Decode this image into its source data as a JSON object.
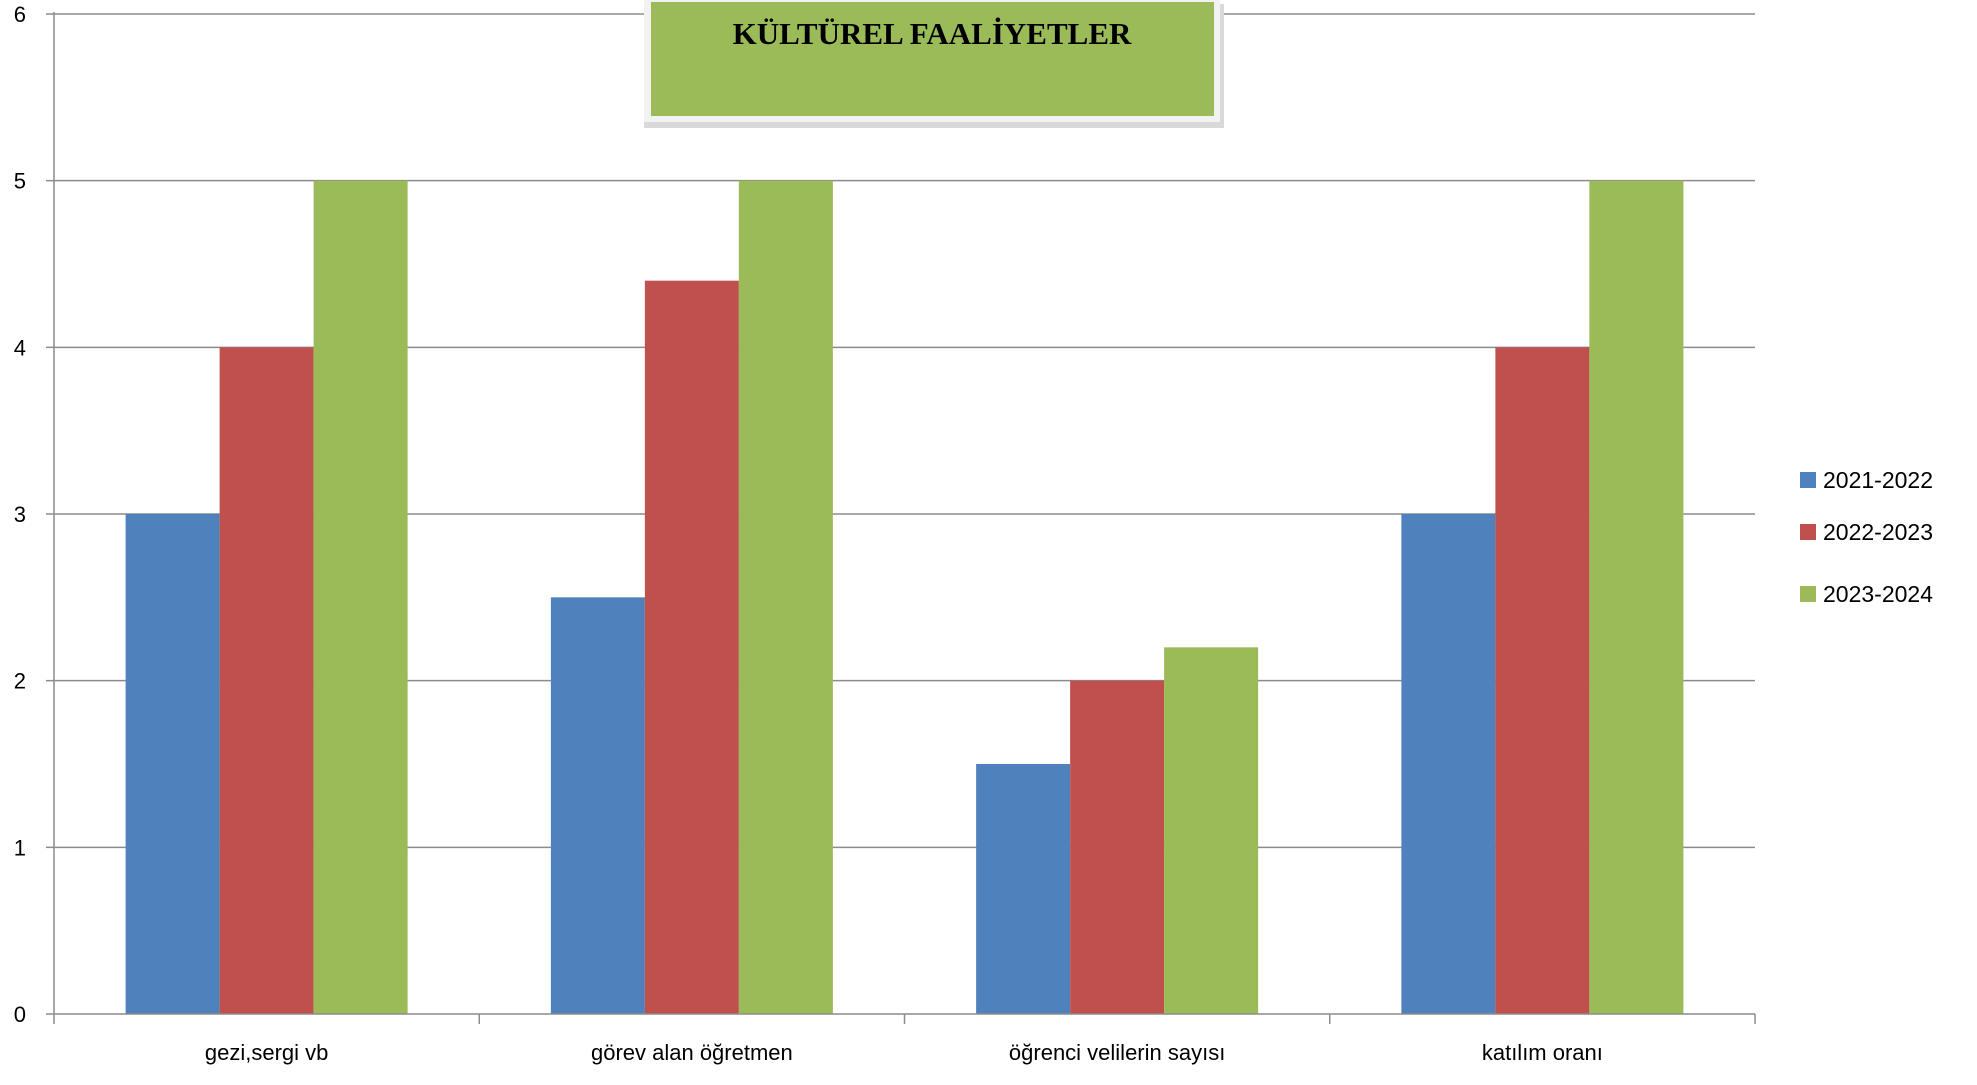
{
  "chart_data": {
    "type": "bar",
    "title": "KÜLTÜREL FAALİYETLER",
    "categories": [
      "gezi,sergi vb",
      "görev alan öğretmen",
      "öğrenci velilerin sayısı",
      "katılım oranı"
    ],
    "series": [
      {
        "name": "2021-2022",
        "color": "#4F81BD",
        "values": [
          3,
          2.5,
          1.5,
          3
        ]
      },
      {
        "name": "2022-2023",
        "color": "#C0504D",
        "values": [
          4,
          4.4,
          2,
          4
        ]
      },
      {
        "name": "2023-2024",
        "color": "#9BBB59",
        "values": [
          5,
          5,
          2.2,
          5
        ]
      }
    ],
    "ylim": [
      0,
      6
    ],
    "yticks": [
      0,
      1,
      2,
      3,
      4,
      5,
      6
    ],
    "grid": true,
    "legend_position": "right",
    "title_box_color": "#9BBB59"
  }
}
